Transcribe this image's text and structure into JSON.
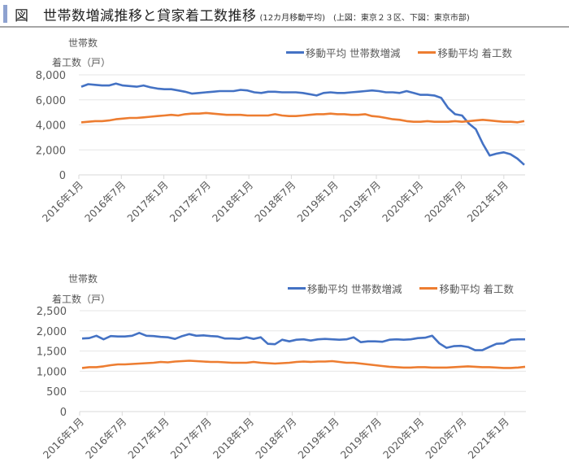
{
  "header": {
    "title": "図　世帯数増減推移と貸家着工数推移",
    "subtitle": "(12カ月移動平均)　(上図：東京２３区、下図：東京市部)",
    "accent_color": "#8EA2D0"
  },
  "colors": {
    "households": "#4472C4",
    "starts": "#ED7D31",
    "grid": "#e6e6e6",
    "axis": "#d9d9d9"
  },
  "chart_data": [
    {
      "type": "line",
      "title": "東京23区",
      "ylabel_line1": "世帯数",
      "ylabel_line2": "着工数（戸）",
      "ylim": [
        0,
        8000
      ],
      "yticks": [
        "0",
        "2,000",
        "4,000",
        "6,000",
        "8,000"
      ],
      "ytick_values": [
        0,
        2000,
        4000,
        6000,
        8000
      ],
      "xtick_labels": [
        "2016年1月",
        "2016年7月",
        "2017年1月",
        "2017年7月",
        "2018年1月",
        "2018年7月",
        "2019年1月",
        "2019年7月",
        "2020年1月",
        "2020年7月",
        "2021年1月"
      ],
      "legend_position": "top-right",
      "grid": true,
      "series": [
        {
          "name": "移動平均 世帯数増減",
          "color": "#4472C4",
          "values": [
            7050,
            7250,
            7200,
            7150,
            7150,
            7300,
            7150,
            7100,
            7050,
            7150,
            7000,
            6900,
            6850,
            6850,
            6750,
            6650,
            6500,
            6550,
            6600,
            6650,
            6700,
            6700,
            6700,
            6800,
            6750,
            6600,
            6550,
            6650,
            6650,
            6600,
            6600,
            6600,
            6550,
            6450,
            6350,
            6550,
            6600,
            6550,
            6550,
            6600,
            6650,
            6700,
            6750,
            6700,
            6600,
            6600,
            6550,
            6700,
            6550,
            6400,
            6400,
            6350,
            6150,
            5350,
            4850,
            4750,
            4100,
            3650,
            2500,
            1550,
            1700,
            1800,
            1650,
            1300,
            800
          ]
        },
        {
          "name": "移動平均 着工数",
          "color": "#ED7D31",
          "values": [
            4200,
            4250,
            4300,
            4300,
            4350,
            4450,
            4500,
            4550,
            4550,
            4600,
            4650,
            4700,
            4750,
            4800,
            4750,
            4850,
            4900,
            4900,
            4950,
            4900,
            4850,
            4800,
            4800,
            4800,
            4750,
            4750,
            4750,
            4750,
            4850,
            4750,
            4700,
            4700,
            4750,
            4800,
            4850,
            4850,
            4900,
            4850,
            4850,
            4800,
            4800,
            4850,
            4700,
            4650,
            4550,
            4450,
            4400,
            4300,
            4250,
            4250,
            4300,
            4250,
            4250,
            4250,
            4300,
            4250,
            4300,
            4350,
            4400,
            4350,
            4300,
            4250,
            4250,
            4200,
            4300
          ]
        }
      ]
    },
    {
      "type": "line",
      "title": "東京市部",
      "ylabel_line1": "世帯数",
      "ylabel_line2": "着工数（戸）",
      "ylim": [
        0,
        2500
      ],
      "yticks": [
        "0",
        "500",
        "1,000",
        "1,500",
        "2,000",
        "2,500"
      ],
      "ytick_values": [
        0,
        500,
        1000,
        1500,
        2000,
        2500
      ],
      "xtick_labels": [
        "2016年1月",
        "2016年7月",
        "2017年1月",
        "2017年7月",
        "2018年1月",
        "2018年7月",
        "2019年1月",
        "2019年7月",
        "2020年1月",
        "2020年7月",
        "2021年1月"
      ],
      "legend_position": "top-right",
      "grid": true,
      "series": [
        {
          "name": "移動平均 世帯数増減",
          "color": "#4472C4",
          "values": [
            1810,
            1820,
            1880,
            1790,
            1870,
            1860,
            1860,
            1880,
            1950,
            1880,
            1870,
            1850,
            1840,
            1800,
            1870,
            1920,
            1880,
            1890,
            1870,
            1860,
            1810,
            1810,
            1800,
            1840,
            1800,
            1840,
            1680,
            1670,
            1780,
            1740,
            1780,
            1790,
            1760,
            1790,
            1800,
            1790,
            1780,
            1790,
            1840,
            1720,
            1740,
            1740,
            1730,
            1780,
            1790,
            1780,
            1790,
            1820,
            1830,
            1880,
            1690,
            1580,
            1620,
            1630,
            1600,
            1520,
            1520,
            1600,
            1680,
            1690,
            1780,
            1790,
            1790
          ]
        },
        {
          "name": "移動平均 着工数",
          "color": "#ED7D31",
          "values": [
            1080,
            1100,
            1100,
            1120,
            1150,
            1170,
            1170,
            1180,
            1190,
            1200,
            1210,
            1230,
            1220,
            1240,
            1250,
            1260,
            1250,
            1240,
            1230,
            1230,
            1220,
            1210,
            1210,
            1210,
            1230,
            1210,
            1200,
            1190,
            1200,
            1210,
            1230,
            1240,
            1230,
            1240,
            1240,
            1250,
            1230,
            1210,
            1210,
            1190,
            1170,
            1150,
            1130,
            1110,
            1100,
            1090,
            1090,
            1100,
            1100,
            1090,
            1090,
            1090,
            1100,
            1110,
            1120,
            1110,
            1100,
            1100,
            1090,
            1080,
            1080,
            1090,
            1110
          ]
        }
      ]
    }
  ]
}
